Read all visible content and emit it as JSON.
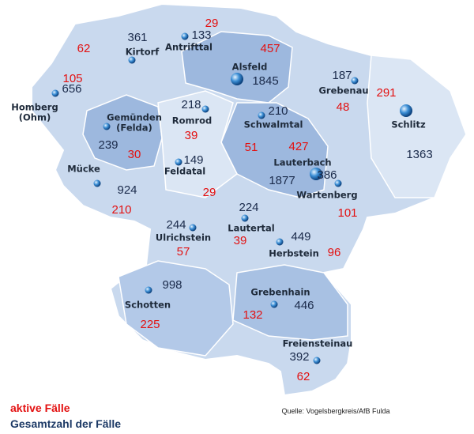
{
  "map": {
    "regions": [
      {
        "name": "Kirtorf",
        "total": "361",
        "active": "62"
      },
      {
        "name": "Antrifttal",
        "total": "133",
        "active": "29"
      },
      {
        "name": "Alsfeld",
        "total": "1845",
        "active": "457"
      },
      {
        "name": "Homberg (Ohm)",
        "total": "656",
        "active": "105"
      },
      {
        "name": "Gemünden (Felda)",
        "total": "239",
        "active": "30"
      },
      {
        "name": "Romrod",
        "total": "218",
        "active": "39"
      },
      {
        "name": "Schwalmtal",
        "total": "210",
        "active": "51"
      },
      {
        "name": "Grebenau",
        "total": "187",
        "active": "48"
      },
      {
        "name": "Schlitz",
        "total": "1363",
        "active": "291"
      },
      {
        "name": "Mücke",
        "total": "924",
        "active": "210"
      },
      {
        "name": "Feldatal",
        "total": "149",
        "active": "29"
      },
      {
        "name": "Lauterbach",
        "total": "1877",
        "active": "427"
      },
      {
        "name": "Wartenberg",
        "total": "386",
        "active": "101"
      },
      {
        "name": "Lautertal",
        "total": "224",
        "active": "39"
      },
      {
        "name": "Ulrichstein",
        "total": "244",
        "active": "57"
      },
      {
        "name": "Herbstein",
        "total": "449",
        "active": "96"
      },
      {
        "name": "Schotten",
        "total": "998",
        "active": "225"
      },
      {
        "name": "Grebenhain",
        "total": "446",
        "active": "132"
      },
      {
        "name": "Freiensteinau",
        "total": "392",
        "active": "62"
      }
    ],
    "legend": {
      "active": "aktive Fälle",
      "total": "Gesamtzahl der Fälle"
    },
    "source": "Quelle: Vogelsbergkreis/AfB Fulda"
  }
}
